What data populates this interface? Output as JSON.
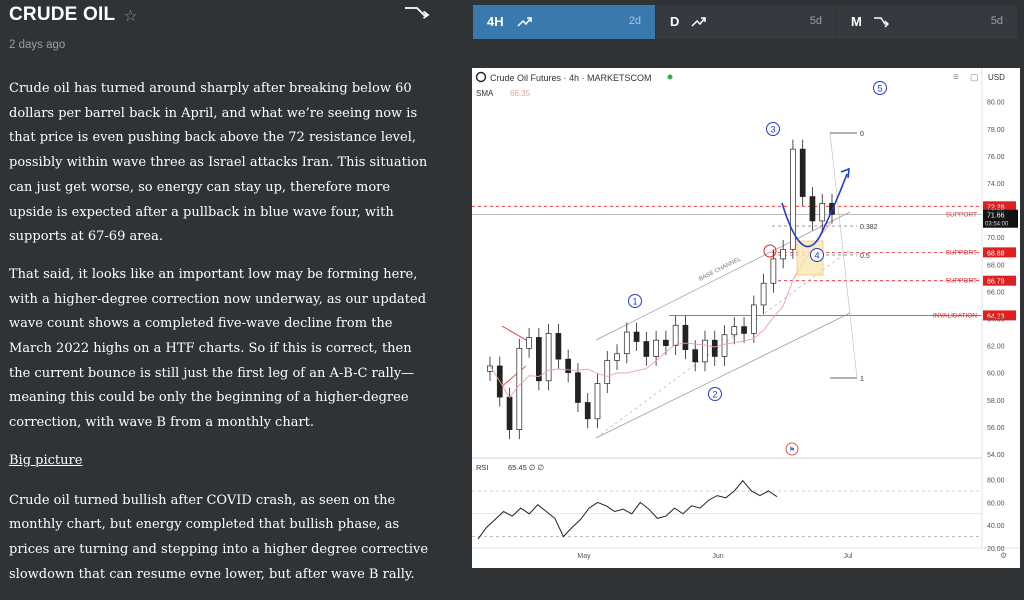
{
  "header": {
    "title": "CRUDE OIL",
    "posted": "2 days ago"
  },
  "article": {
    "p1": "Crude oil has turned around sharply after breaking below 60 dollars per barrel back in April, and what we’re seeing now is that price is even pushing back above the 72 resistance level, possibly within wave three as Israel attacks Iran. This situation can just get worse, so energy can stay up, therefore more upside is expected after a pullback in blue wave four, with supports at 67-69 area.",
    "p2": "That said, it looks like an important low may be forming here, with a higher-degree correction now underway, as our updated wave count shows a completed five-wave decline from the March 2022 highs on a HTF charts. So if this is correct, then the current bounce is still just the first leg of an A-B-C rally—meaning this could be only the beginning of a higher-degree correction, with wave B from a monthly chart.",
    "heading": "Big picture",
    "p3": "Crude oil turned bullish after COVID crash, as seen on the monthly chart, but energy completed that bullish phase, as prices are turning and stepping into a higher degree corrective slowdown that can resume evne lower, but after wave B rally."
  },
  "tabs": [
    {
      "tf": "4H",
      "range": "2d",
      "icon": "trend-up-icon",
      "active": true
    },
    {
      "tf": "D",
      "range": "5d",
      "icon": "trend-up-icon",
      "active": false
    },
    {
      "tf": "M",
      "range": "5d",
      "icon": "trend-down-icon",
      "active": false
    }
  ],
  "icons": {
    "star": "star-icon",
    "trend": "trend-down-icon"
  },
  "colors": {
    "background": "#2f3336",
    "tab_active": "#3a79ad",
    "tab_inactive": "#343a3f",
    "wave_blue": "#1f3ccf",
    "support_red": "#e02020",
    "chart_bg": "#ffffff"
  },
  "chart_data": {
    "type": "candlestick",
    "title": "Crude Oil Futures · 4h · MARKETSCOM",
    "currency": "USD",
    "sma_label": "SMA",
    "sma_value": "66.35",
    "price_axis": [
      "80.00",
      "78.00",
      "76.00",
      "74.00",
      "72.00",
      "70.00",
      "68.00",
      "66.00",
      "64.00",
      "62.00",
      "60.00",
      "58.00",
      "56.00",
      "54.00"
    ],
    "time_axis": [
      "May",
      "Jun",
      "Jul"
    ],
    "price_tags": {
      "support_1": "72.28",
      "last_price": "71.66",
      "countdown": "03:54:00",
      "support_2": "68.88",
      "support_3": "66.79",
      "invalidation": "64.23"
    },
    "level_labels": {
      "support": "SUPPORT",
      "invalidation": "INVALIDATION",
      "base_channel": "BASE CHANNEL"
    },
    "fib_levels": [
      "0",
      "0.382",
      "0.5",
      "1"
    ],
    "waves": [
      "1",
      "2",
      "3",
      "4",
      "5"
    ],
    "close_series": [
      60.5,
      58.2,
      55.8,
      61.8,
      62.6,
      59.4,
      62.9,
      61.0,
      60.0,
      57.8,
      56.6,
      59.2,
      60.9,
      61.4,
      63.0,
      62.3,
      61.2,
      62.4,
      62.0,
      63.5,
      61.7,
      60.8,
      62.4,
      61.2,
      62.8,
      63.4,
      62.9,
      65.0,
      66.6,
      68.4,
      69.1,
      76.5,
      73.0,
      71.2,
      72.5,
      71.7
    ],
    "rsi": {
      "label": "RSI",
      "value": "65.45",
      "axis": [
        "80.00",
        "60.00",
        "40.00",
        "20.00"
      ],
      "series": [
        28,
        38,
        45,
        52,
        48,
        55,
        50,
        58,
        52,
        46,
        30,
        38,
        45,
        55,
        60,
        57,
        52,
        54,
        50,
        60,
        54,
        46,
        48,
        55,
        50,
        57,
        55,
        62,
        66,
        64,
        70,
        79,
        70,
        66,
        70,
        65
      ]
    }
  }
}
